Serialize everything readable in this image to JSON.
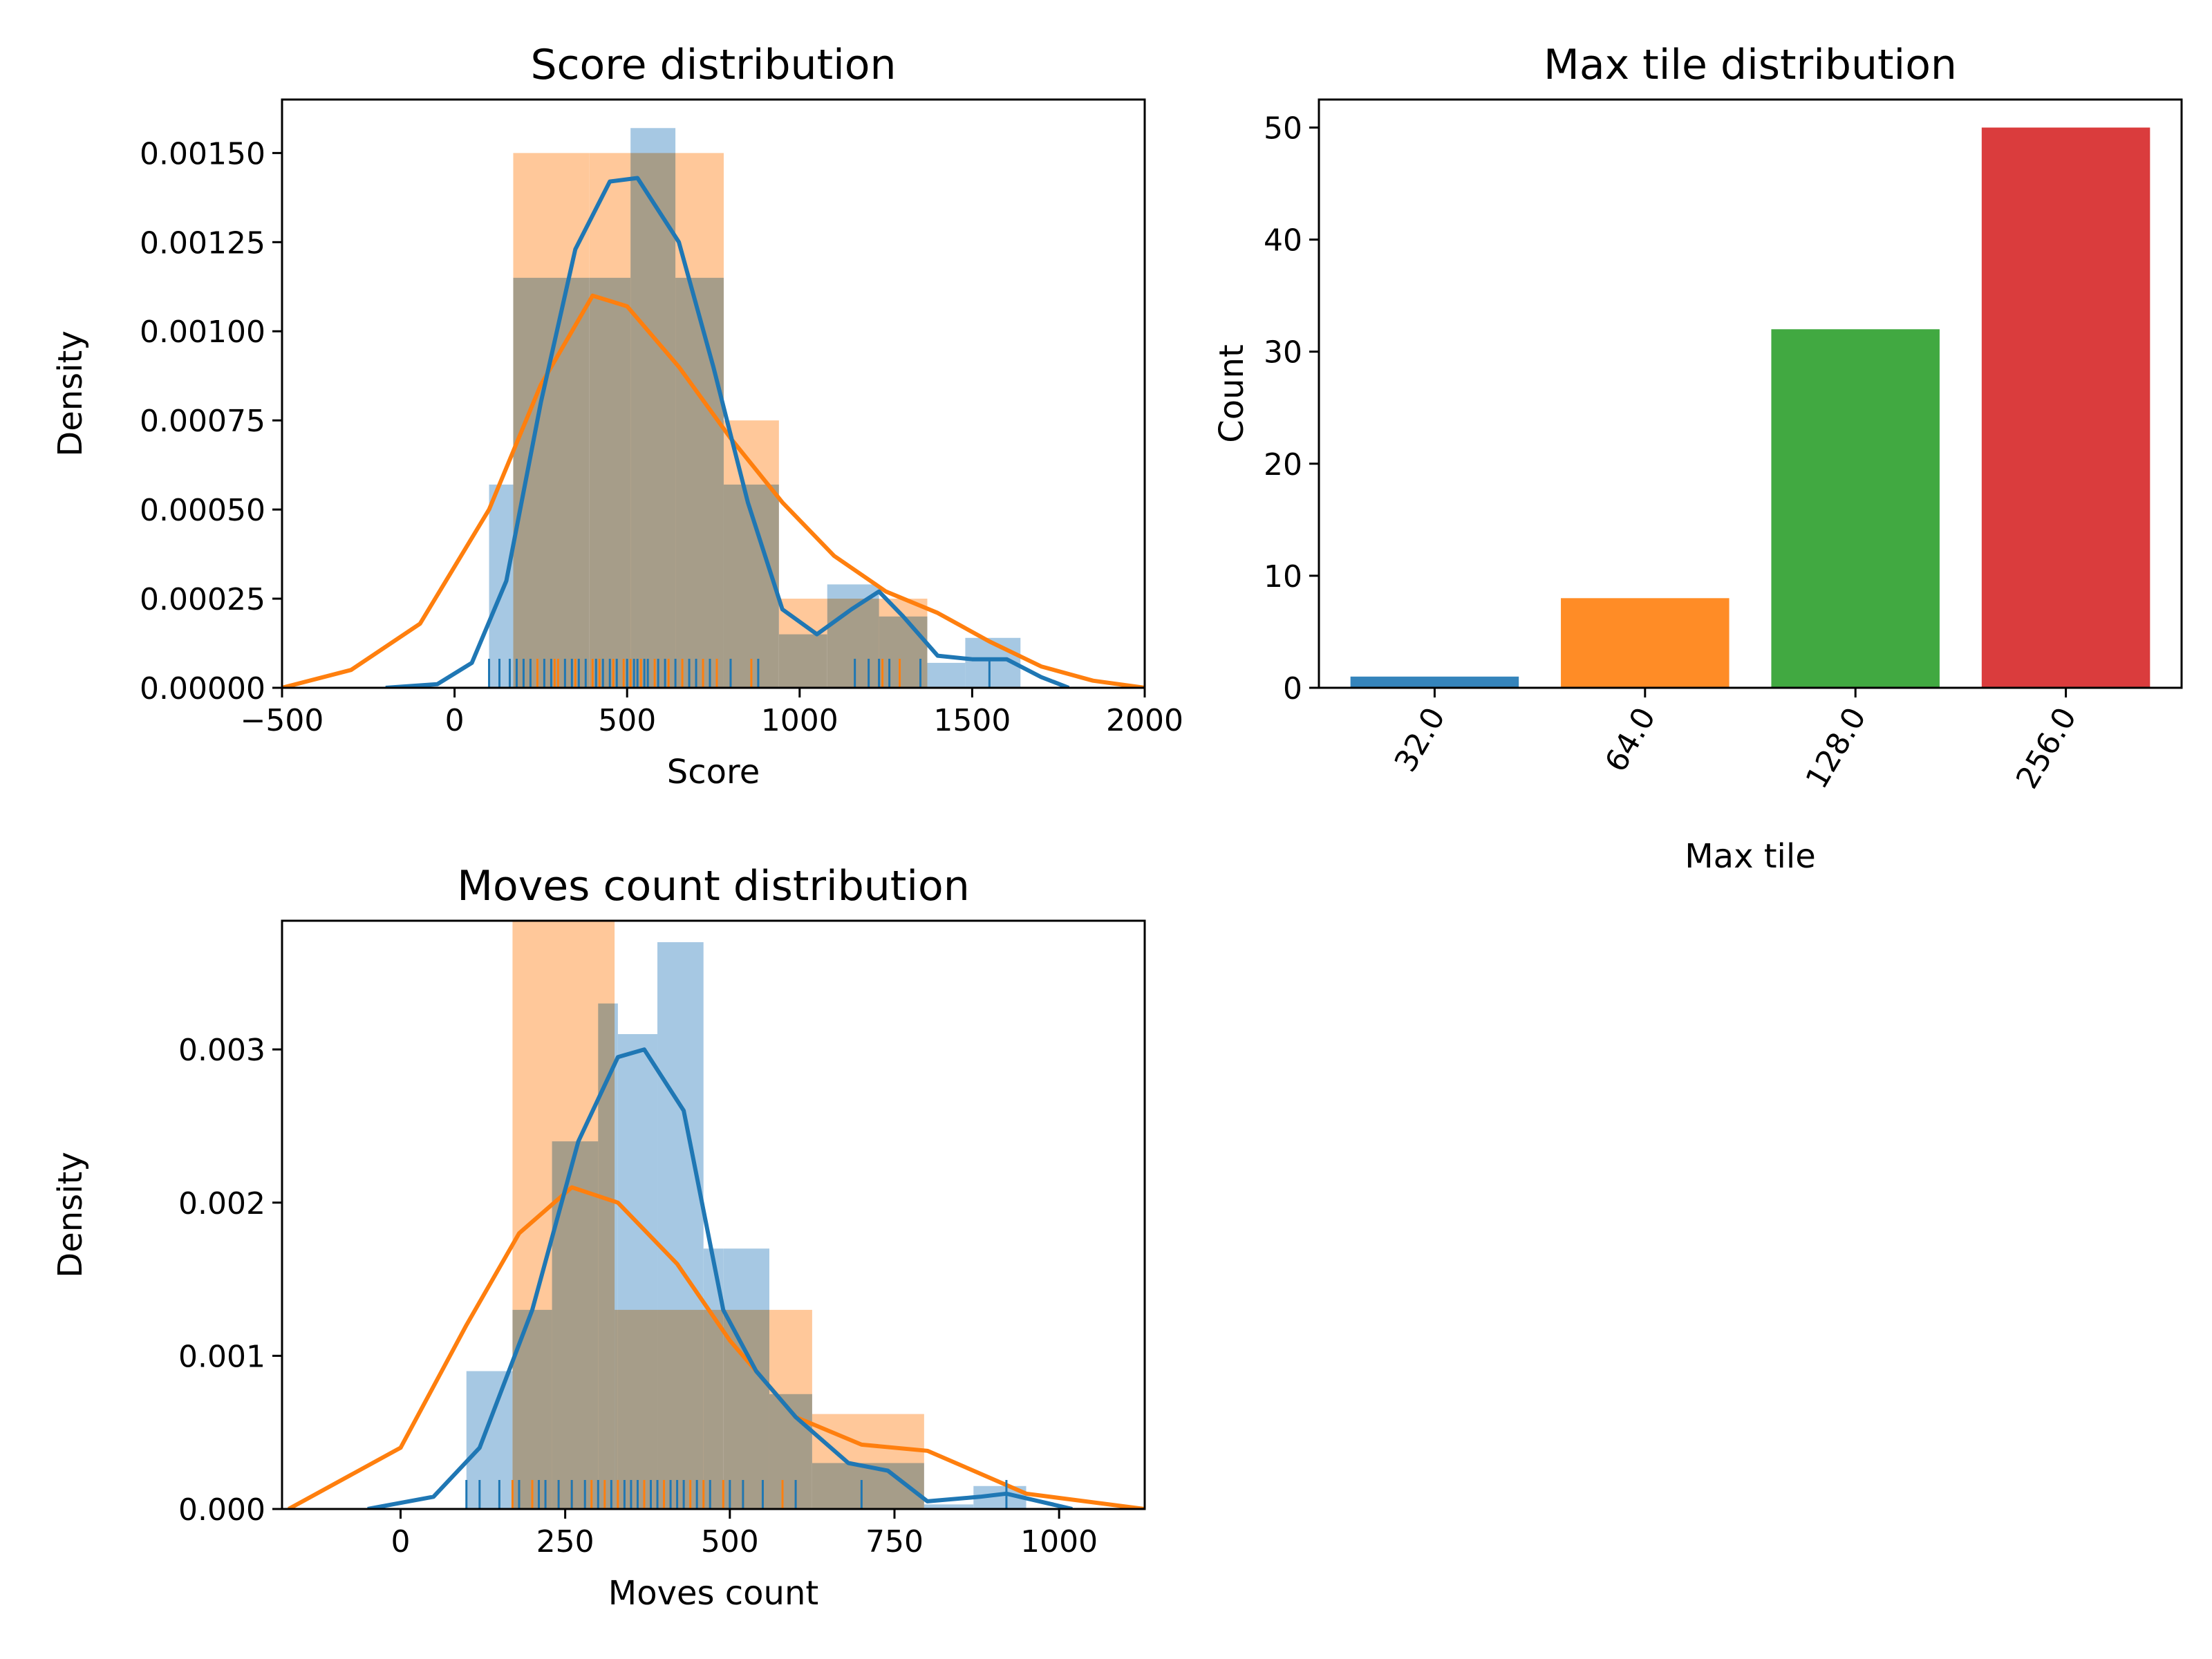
{
  "colors": {
    "blue": "#1f77b4",
    "orange": "#ff7f0e",
    "green": "#2ca02c",
    "red": "#d62728",
    "blue_hist": "#a6c8e3",
    "orange_hist": "#ffc89a"
  },
  "chart_data": [
    {
      "id": "score",
      "type": "histogram",
      "title": "Score distribution",
      "xlabel": "Score",
      "ylabel": "Density",
      "xlim": [
        -500,
        2000
      ],
      "ylim": [
        0,
        0.00165
      ],
      "xticks": [
        -500,
        0,
        500,
        1000,
        1500,
        2000
      ],
      "xtick_labels": [
        "−500",
        "0",
        "500",
        "1000",
        "1500",
        "2000"
      ],
      "yticks": [
        0,
        0.00025,
        0.0005,
        0.00075,
        0.001,
        0.00125,
        0.0015
      ],
      "ytick_labels": [
        "0.00000",
        "0.00025",
        "0.00050",
        "0.00075",
        "0.00100",
        "0.00125",
        "0.00150"
      ],
      "series": [
        {
          "color": "orange",
          "bins": [
            [
              170,
              390,
              0.0015
            ],
            [
              390,
              780,
              0.0015
            ],
            [
              780,
              940,
              0.00075
            ],
            [
              940,
              1080,
              0.00025
            ],
            [
              1080,
              1370,
              0.00025
            ]
          ],
          "kde": [
            [
              -500,
              0.0
            ],
            [
              -300,
              5e-05
            ],
            [
              -100,
              0.00018
            ],
            [
              100,
              0.0005
            ],
            [
              250,
              0.00085
            ],
            [
              400,
              0.0011
            ],
            [
              500,
              0.00107
            ],
            [
              650,
              0.0009
            ],
            [
              800,
              0.0007
            ],
            [
              950,
              0.00052
            ],
            [
              1100,
              0.00037
            ],
            [
              1250,
              0.00027
            ],
            [
              1400,
              0.00021
            ],
            [
              1550,
              0.00013
            ],
            [
              1700,
              6e-05
            ],
            [
              1850,
              2e-05
            ],
            [
              2000,
              0.0
            ]
          ],
          "rug": [
            160,
            240,
            290,
            300,
            350,
            400,
            420,
            460,
            490,
            510,
            540,
            580,
            620,
            660,
            720,
            760,
            860,
            1240,
            1290
          ]
        },
        {
          "color": "blue",
          "bins": [
            [
              100,
              170,
              0.00057
            ],
            [
              170,
              390,
              0.00115
            ],
            [
              390,
              510,
              0.00115
            ],
            [
              510,
              640,
              0.00157
            ],
            [
              640,
              780,
              0.00115
            ],
            [
              780,
              940,
              0.00057
            ],
            [
              940,
              1080,
              0.00015
            ],
            [
              1080,
              1230,
              0.00029
            ],
            [
              1230,
              1370,
              0.0002
            ],
            [
              1370,
              1480,
              7e-05
            ],
            [
              1480,
              1640,
              0.00014
            ]
          ],
          "kde": [
            [
              -200,
              0.0
            ],
            [
              -50,
              1e-05
            ],
            [
              50,
              7e-05
            ],
            [
              150,
              0.0003
            ],
            [
              250,
              0.0008
            ],
            [
              350,
              0.00123
            ],
            [
              450,
              0.00142
            ],
            [
              530,
              0.00143
            ],
            [
              650,
              0.00125
            ],
            [
              750,
              0.0009
            ],
            [
              850,
              0.00052
            ],
            [
              950,
              0.00022
            ],
            [
              1050,
              0.00015
            ],
            [
              1150,
              0.00022
            ],
            [
              1230,
              0.00027
            ],
            [
              1300,
              0.0002
            ],
            [
              1400,
              9e-05
            ],
            [
              1500,
              8e-05
            ],
            [
              1600,
              8e-05
            ],
            [
              1700,
              3e-05
            ],
            [
              1780,
              0.0
            ]
          ],
          "rug": [
            100,
            130,
            160,
            180,
            200,
            220,
            260,
            280,
            320,
            340,
            360,
            380,
            410,
            430,
            450,
            470,
            500,
            520,
            530,
            550,
            560,
            590,
            610,
            640,
            680,
            700,
            740,
            800,
            880,
            1160,
            1200,
            1230,
            1260,
            1350,
            1550
          ]
        }
      ]
    },
    {
      "id": "maxtile",
      "type": "bar",
      "title": "Max tile distribution",
      "xlabel": "Max tile",
      "ylabel": "Count",
      "categories": [
        "32.0",
        "64.0",
        "128.0",
        "256.0"
      ],
      "values": [
        1,
        8,
        32,
        50
      ],
      "bar_colors": [
        "blue",
        "orange",
        "green",
        "red"
      ],
      "ylim": [
        0,
        52.5
      ],
      "yticks": [
        0,
        10,
        20,
        30,
        40,
        50
      ],
      "ytick_labels": [
        "0",
        "10",
        "20",
        "30",
        "40",
        "50"
      ]
    },
    {
      "id": "moves",
      "type": "histogram",
      "title": "Moves count distribution",
      "xlabel": "Moves count",
      "ylabel": "Density",
      "xlim": [
        -180,
        1130
      ],
      "ylim": [
        0,
        0.00384
      ],
      "xticks": [
        0,
        250,
        500,
        750,
        1000
      ],
      "xtick_labels": [
        "0",
        "250",
        "500",
        "750",
        "1000"
      ],
      "yticks": [
        0,
        0.001,
        0.002,
        0.003
      ],
      "ytick_labels": [
        "0.000",
        "0.001",
        "0.002",
        "0.003"
      ],
      "series": [
        {
          "color": "orange",
          "bins": [
            [
              170,
              325,
              0.00384
            ],
            [
              325,
              490,
              0.0013
            ],
            [
              490,
              625,
              0.0013
            ],
            [
              625,
              795,
              0.00062
            ]
          ],
          "kde": [
            [
              -170,
              0.0
            ],
            [
              0,
              0.0004
            ],
            [
              100,
              0.0012
            ],
            [
              180,
              0.0018
            ],
            [
              260,
              0.0021
            ],
            [
              330,
              0.002
            ],
            [
              420,
              0.0016
            ],
            [
              500,
              0.0011
            ],
            [
              600,
              0.0006
            ],
            [
              700,
              0.00042
            ],
            [
              800,
              0.00038
            ],
            [
              870,
              0.00025
            ],
            [
              950,
              0.0001
            ],
            [
              1130,
              0.0
            ]
          ],
          "rug": [
            170,
            200,
            240,
            260,
            290,
            310,
            330,
            370,
            400,
            440,
            460,
            490,
            520,
            580
          ]
        },
        {
          "color": "blue",
          "bins": [
            [
              100,
              170,
              0.0009
            ],
            [
              170,
              230,
              0.0013
            ],
            [
              230,
              300,
              0.0024
            ],
            [
              300,
              330,
              0.0033
            ],
            [
              330,
              390,
              0.0031
            ],
            [
              390,
              460,
              0.0037
            ],
            [
              460,
              490,
              0.0017
            ],
            [
              490,
              560,
              0.0017
            ],
            [
              560,
              625,
              0.00075
            ],
            [
              625,
              795,
              0.0003
            ],
            [
              795,
              870,
              3e-05
            ],
            [
              870,
              950,
              0.00015
            ]
          ],
          "kde": [
            [
              -50,
              0.0
            ],
            [
              50,
              8e-05
            ],
            [
              120,
              0.0004
            ],
            [
              200,
              0.0013
            ],
            [
              270,
              0.0024
            ],
            [
              330,
              0.00295
            ],
            [
              370,
              0.003
            ],
            [
              430,
              0.0026
            ],
            [
              490,
              0.0013
            ],
            [
              540,
              0.0009
            ],
            [
              600,
              0.0006
            ],
            [
              680,
              0.0003
            ],
            [
              740,
              0.00025
            ],
            [
              800,
              5e-05
            ],
            [
              880,
              8e-05
            ],
            [
              920,
              0.0001
            ],
            [
              970,
              5e-05
            ],
            [
              1020,
              0.0
            ]
          ],
          "rug": [
            100,
            120,
            150,
            180,
            210,
            220,
            240,
            260,
            280,
            300,
            320,
            340,
            350,
            360,
            380,
            390,
            410,
            420,
            430,
            450,
            470,
            500,
            520,
            550,
            600,
            700,
            920
          ]
        }
      ]
    }
  ]
}
